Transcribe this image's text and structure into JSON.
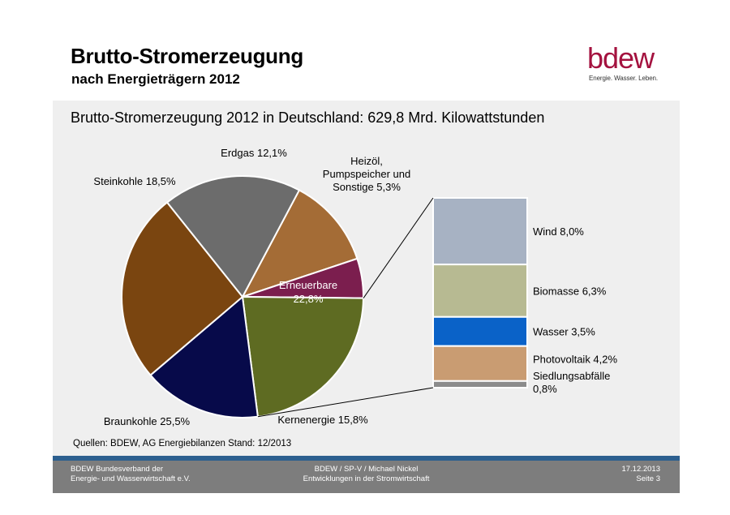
{
  "header": {
    "title": "Brutto-Stromerzeugung",
    "subtitle": "nach Energieträgern 2012"
  },
  "logo": {
    "wordmark": "bdew",
    "tagline": "Energie. Wasser. Leben.",
    "color": "#a4123f"
  },
  "chart_data": {
    "type": "pie",
    "title": "Brutto-Stromerzeugung 2012 in Deutschland: 629,8 Mrd. Kilowattstunden",
    "unit": "%",
    "slices": [
      {
        "name": "Erdgas",
        "value": 12.1,
        "label": "Erdgas 12,1%",
        "color": "#a46c36"
      },
      {
        "name": "Heizöl, Pumpspeicher und Sonstige",
        "value": 5.3,
        "label_lines": [
          "Heizöl,",
          "Pumpspeicher und",
          "Sonstige 5,3%"
        ],
        "color": "#7b1e4e"
      },
      {
        "name": "Erneuerbare",
        "value": 22.8,
        "label_lines": [
          "Erneuerbare",
          "22,8%"
        ],
        "color": "#5e6b22"
      },
      {
        "name": "Kernenergie",
        "value": 15.8,
        "label": "Kernenergie 15,8%",
        "color": "#070a4a"
      },
      {
        "name": "Braunkohle",
        "value": 25.5,
        "label": "Braunkohle 25,5%",
        "color": "#7a4510"
      },
      {
        "name": "Steinkohle",
        "value": 18.5,
        "label": "Steinkohle 18,5%",
        "color": "#6c6c6c"
      }
    ],
    "breakdown": {
      "of": "Erneuerbare",
      "items": [
        {
          "name": "Wind",
          "value": 8.0,
          "label": "Wind 8,0%",
          "color": "#a7b2c3"
        },
        {
          "name": "Biomasse",
          "value": 6.3,
          "label": "Biomasse 6,3%",
          "color": "#b7ba92"
        },
        {
          "name": "Wasser",
          "value": 3.5,
          "label": "Wasser 3,5%",
          "color": "#0a62c8"
        },
        {
          "name": "Photovoltaik",
          "value": 4.2,
          "label": "Photovoltaik 4,2%",
          "color": "#c99c72"
        },
        {
          "name": "Siedlungsabfälle",
          "value": 0.8,
          "label_lines": [
            "Siedlungsabfälle",
            "0,8%"
          ],
          "color": "#8c8c8c"
        }
      ]
    }
  },
  "source": "Quellen: BDEW,  AG Energiebilanzen Stand: 12/2013",
  "footer": {
    "left_line1": "BDEW Bundesverband der",
    "left_line2": "Energie- und Wasserwirtschaft e.V.",
    "center_line1": "BDEW / SP-V / Michael Nickel",
    "center_line2": "Entwicklungen in der Stromwirtschaft",
    "right_line1": "17.12.2013",
    "right_line2": "Seite 3",
    "bar_color": "#2c5f8f",
    "bg_color": "#7d7d7d"
  }
}
